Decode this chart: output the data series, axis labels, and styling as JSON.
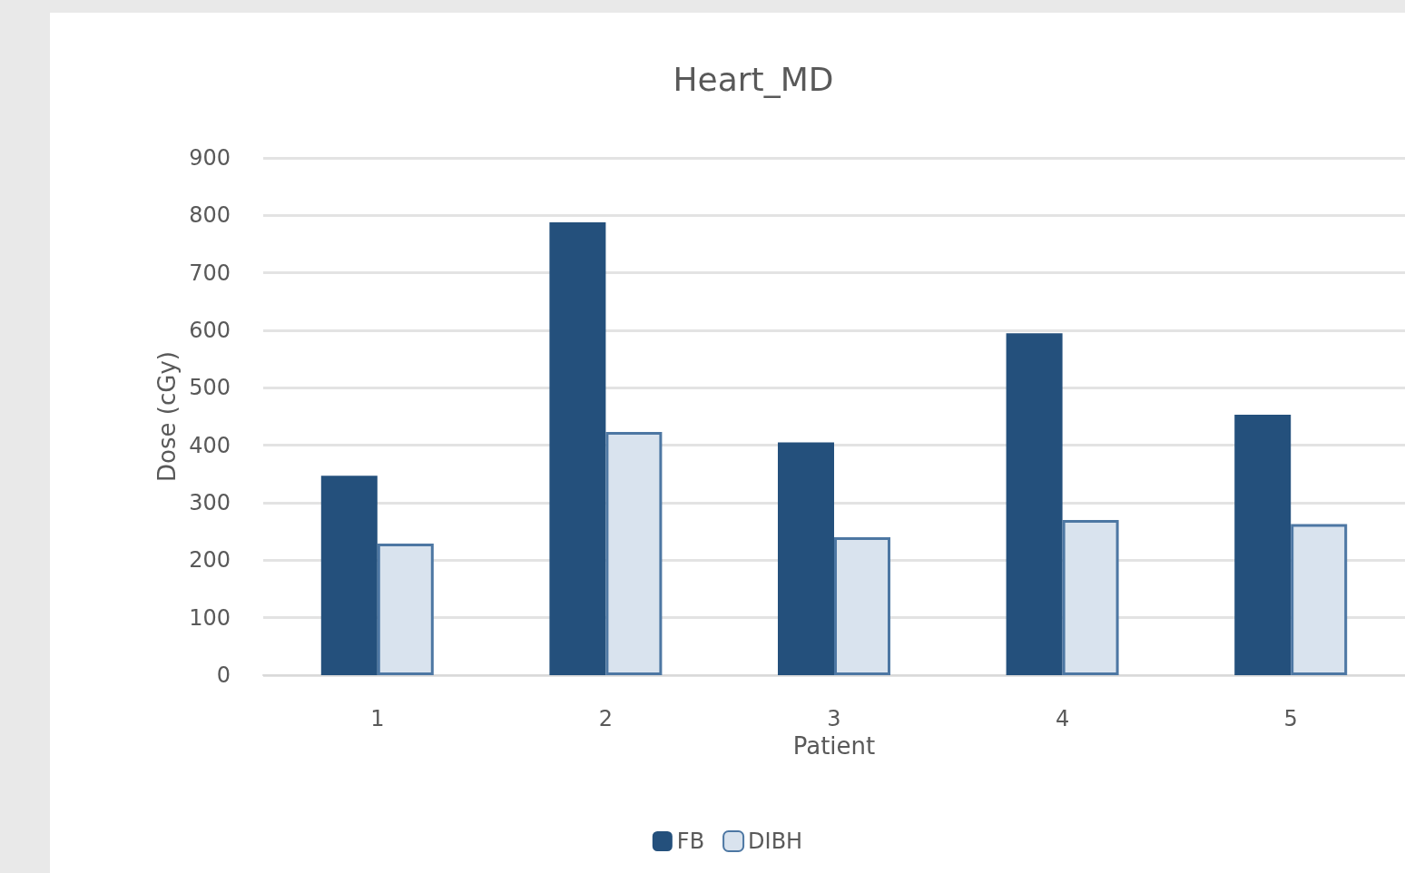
{
  "chart_data": {
    "type": "bar",
    "title": "Heart_MD",
    "xlabel": "Patient",
    "ylabel": "Dose (cGy)",
    "categories": [
      "1",
      "2",
      "3",
      "4",
      "5"
    ],
    "series": [
      {
        "name": "FB",
        "color": "#24507c",
        "values": [
          347,
          788,
          405,
          595,
          453
        ]
      },
      {
        "name": "DIBH",
        "color": "#d9e3ee",
        "values": [
          229,
          423,
          240,
          270,
          263
        ]
      }
    ],
    "ylim": [
      0,
      900
    ],
    "yticks": [
      0,
      100,
      200,
      300,
      400,
      500,
      600,
      700,
      800,
      900
    ],
    "grid": "y",
    "legend": "bottom"
  }
}
